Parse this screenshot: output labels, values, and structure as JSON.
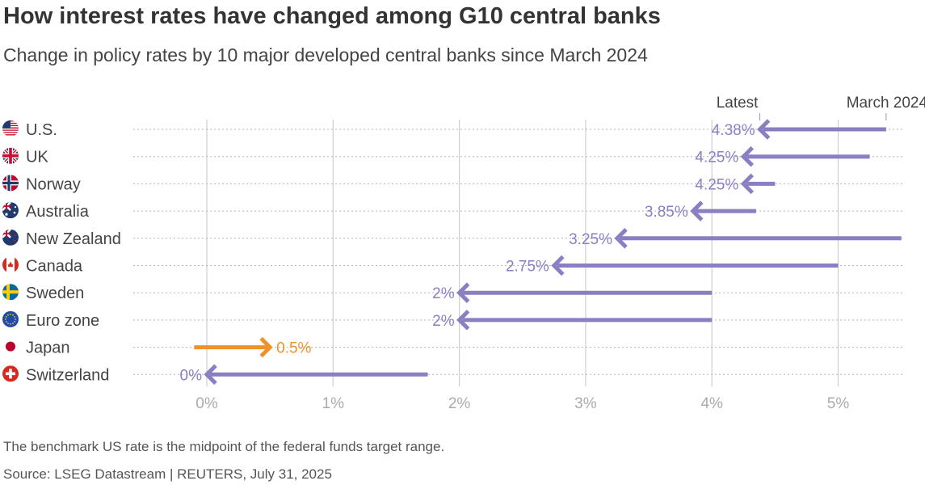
{
  "title": "How interest rates have changed among G10 central banks",
  "subtitle": "Change in policy rates by 10 major developed central banks since March 2024",
  "note": "The benchmark US rate is the midpoint of the federal funds target range.",
  "source": "Source: LSEG Datastream | REUTERS, July 31, 2025",
  "colors": {
    "cut": "#8b7fc4",
    "hike": "#f0922b",
    "grid": "#cfcfcf",
    "tick": "#aaaaaa",
    "text": "#444444"
  },
  "chart_data": {
    "type": "arrow-dot",
    "title": "How interest rates have changed among G10 central banks",
    "subtitle": "Change in policy rates by 10 major developed central banks since March 2024",
    "xlabel": "",
    "ylabel": "",
    "xlim": [
      0,
      5.5
    ],
    "xticks": [
      0,
      1,
      2,
      3,
      4,
      5
    ],
    "xtick_labels": [
      "0%",
      "1%",
      "2%",
      "3%",
      "4%",
      "5%"
    ],
    "legend": {
      "start_label": "March 2024",
      "end_label": "Latest"
    },
    "series": [
      {
        "name": "March 2024",
        "values": [
          5.38,
          5.25,
          4.5,
          4.35,
          5.5,
          5.0,
          4.0,
          4.0,
          -0.1,
          1.75
        ]
      },
      {
        "name": "Latest",
        "values": [
          4.38,
          4.25,
          4.25,
          3.85,
          3.25,
          2.75,
          2.0,
          2.0,
          0.5,
          0.0
        ]
      }
    ],
    "categories": [
      "U.S.",
      "UK",
      "Norway",
      "Australia",
      "New Zealand",
      "Canada",
      "Sweden",
      "Euro zone",
      "Japan",
      "Switzerland"
    ],
    "rows": [
      {
        "country": "U.S.",
        "flag": "us-flag-icon",
        "march_2024": 5.38,
        "latest": 4.38,
        "label": "4.38%"
      },
      {
        "country": "UK",
        "flag": "uk-flag-icon",
        "march_2024": 5.25,
        "latest": 4.25,
        "label": "4.25%"
      },
      {
        "country": "Norway",
        "flag": "norway-flag-icon",
        "march_2024": 4.5,
        "latest": 4.25,
        "label": "4.25%"
      },
      {
        "country": "Australia",
        "flag": "australia-flag-icon",
        "march_2024": 4.35,
        "latest": 3.85,
        "label": "3.85%"
      },
      {
        "country": "New Zealand",
        "flag": "new-zealand-flag-icon",
        "march_2024": 5.5,
        "latest": 3.25,
        "label": "3.25%"
      },
      {
        "country": "Canada",
        "flag": "canada-flag-icon",
        "march_2024": 5.0,
        "latest": 2.75,
        "label": "2.75%"
      },
      {
        "country": "Sweden",
        "flag": "sweden-flag-icon",
        "march_2024": 4.0,
        "latest": 2.0,
        "label": "2%"
      },
      {
        "country": "Euro zone",
        "flag": "euro-zone-flag-icon",
        "march_2024": 4.0,
        "latest": 2.0,
        "label": "2%"
      },
      {
        "country": "Japan",
        "flag": "japan-flag-icon",
        "march_2024": -0.1,
        "latest": 0.5,
        "label": "0.5%"
      },
      {
        "country": "Switzerland",
        "flag": "switzerland-flag-icon",
        "march_2024": 1.75,
        "latest": 0.0,
        "label": "0%"
      }
    ]
  }
}
